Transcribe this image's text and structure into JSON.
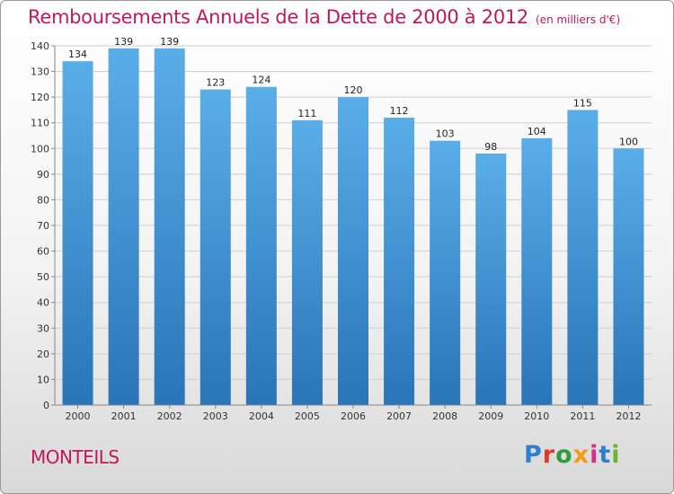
{
  "header": {
    "title": "Remboursements Annuels de la Dette de 2000 à 2012",
    "unit": "(en milliers d'€)"
  },
  "footer": {
    "town": "MONTEILS",
    "logo_letters": [
      "P",
      "r",
      "o",
      "x",
      "i",
      "t",
      "i"
    ],
    "logo_colors": [
      "#2e7fd0",
      "#e03a2a",
      "#2e9e3a",
      "#f09a16",
      "#d62f8a",
      "#2e7fd0",
      "#6bb52e"
    ]
  },
  "colors": {
    "bar_top": "#5aaee8",
    "bar_bottom": "#2a74b8",
    "title": "#c2185b",
    "grid": "#cfcfcf",
    "axis": "#888888"
  },
  "chart_data": {
    "type": "bar",
    "categories": [
      "2000",
      "2001",
      "2002",
      "2003",
      "2004",
      "2005",
      "2006",
      "2007",
      "2008",
      "2009",
      "2010",
      "2011",
      "2012"
    ],
    "values": [
      134,
      139,
      139,
      123,
      124,
      111,
      120,
      112,
      103,
      98,
      104,
      115,
      100
    ],
    "ylim": [
      0,
      140
    ],
    "yticks": [
      0,
      10,
      20,
      30,
      40,
      50,
      60,
      70,
      80,
      90,
      100,
      110,
      120,
      130,
      140
    ],
    "grid": true,
    "xlabel": "",
    "ylabel": ""
  }
}
